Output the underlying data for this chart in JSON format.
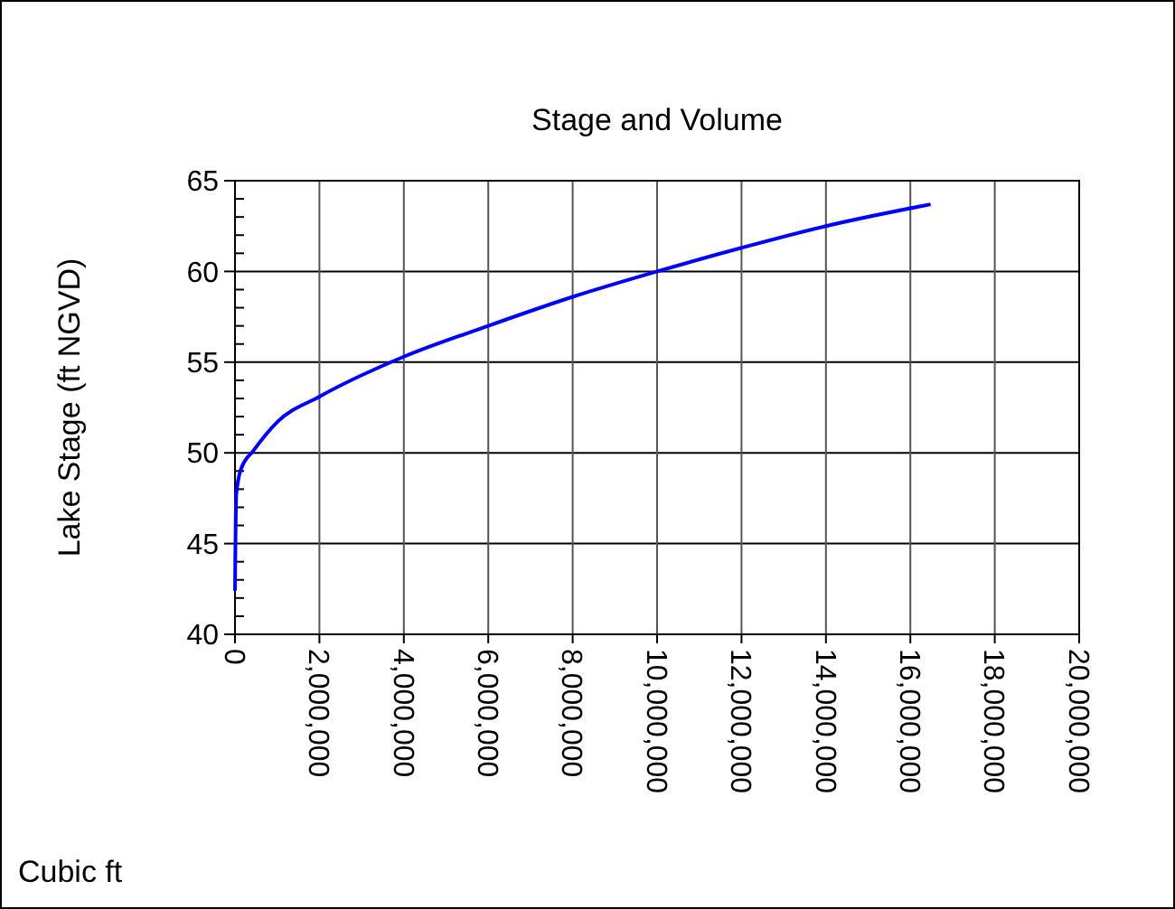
{
  "chart_data": {
    "type": "line",
    "title": "Stage and Volume",
    "xlabel": "Cubic ft",
    "ylabel": "Lake Stage (ft NGVD)",
    "x": [
      0,
      30000,
      140000,
      430000,
      1000000,
      2000000,
      4000000,
      6000000,
      8000000,
      10000000,
      12000000,
      14000000,
      16480000
    ],
    "series": [
      {
        "color": "#0000ff",
        "values": [
          42.4,
          47.7,
          49.1,
          50.1,
          51.7,
          53.1,
          55.3,
          57.0,
          58.6,
          60.0,
          61.3,
          62.5,
          63.7
        ]
      }
    ],
    "xlim": [
      0,
      20000000
    ],
    "xticks": [
      {
        "value": 0,
        "label": "0"
      },
      {
        "value": 2000000,
        "label": "2,000,000"
      },
      {
        "value": 4000000,
        "label": "4,000,000"
      },
      {
        "value": 6000000,
        "label": "6,000,000"
      },
      {
        "value": 8000000,
        "label": "8,000,000"
      },
      {
        "value": 10000000,
        "label": "10,000,000"
      },
      {
        "value": 12000000,
        "label": "12,000,000"
      },
      {
        "value": 14000000,
        "label": "14,000,000"
      },
      {
        "value": 16000000,
        "label": "16,000,000"
      },
      {
        "value": 18000000,
        "label": "18,000,000"
      },
      {
        "value": 20000000,
        "label": "20,000,000"
      }
    ],
    "ylim": [
      40,
      65
    ],
    "yticks": [
      40,
      45,
      50,
      55,
      60,
      65
    ],
    "grid": true,
    "marker": "none",
    "line_style": "solid"
  }
}
